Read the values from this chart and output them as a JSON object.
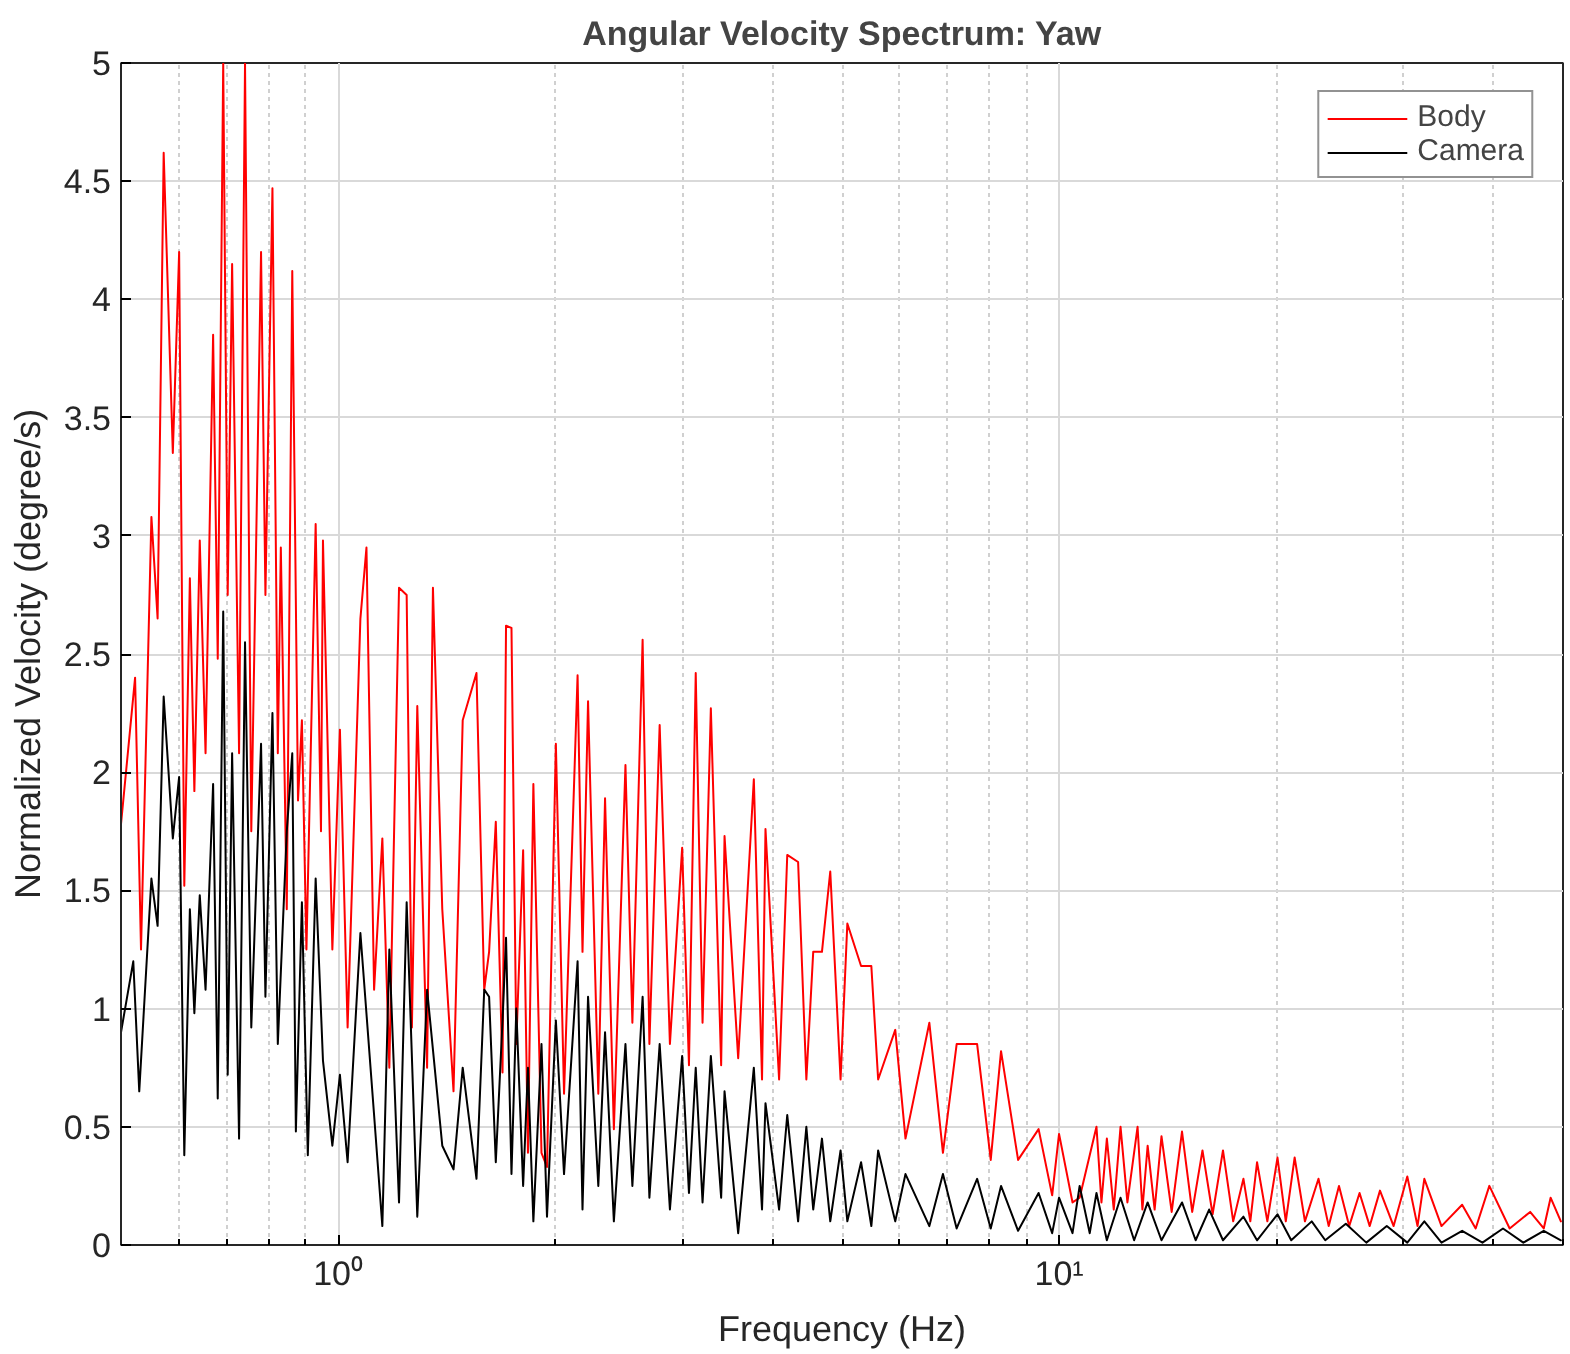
{
  "chart_data": {
    "type": "line",
    "title": "Angular Velocity Spectrum: Yaw",
    "xlabel": "Frequency (Hz)",
    "ylabel": "Normalized Velocity (degree/s)",
    "log": "x",
    "grid": true,
    "legend": "top right",
    "line_style": "solid",
    "marker": "none",
    "xlim": [
      0.5,
      50
    ],
    "ylim": [
      0,
      5
    ],
    "xticks": [
      {
        "value": 0.5,
        "label": null
      },
      {
        "value": 0.6,
        "label": null
      },
      {
        "value": 0.7,
        "label": null
      },
      {
        "value": 0.8,
        "label": null
      },
      {
        "value": 0.9,
        "label": null
      },
      {
        "value": 1,
        "label": "10⁰"
      },
      {
        "value": 2,
        "label": null
      },
      {
        "value": 3,
        "label": null
      },
      {
        "value": 4,
        "label": null
      },
      {
        "value": 5,
        "label": null
      },
      {
        "value": 6,
        "label": null
      },
      {
        "value": 7,
        "label": null
      },
      {
        "value": 8,
        "label": null
      },
      {
        "value": 9,
        "label": null
      },
      {
        "value": 10,
        "label": "10¹"
      },
      {
        "value": 20,
        "label": null
      },
      {
        "value": 30,
        "label": null
      },
      {
        "value": 40,
        "label": null
      },
      {
        "value": 50,
        "label": null
      }
    ],
    "yticks": [
      0,
      0.5,
      1,
      1.5,
      2,
      2.5,
      3,
      3.5,
      4,
      4.5,
      5
    ],
    "series": [
      {
        "name": "Body",
        "color": "#ff0000",
        "x": [
          0.5,
          0.523,
          0.533,
          0.551,
          0.562,
          0.573,
          0.59,
          0.602,
          0.612,
          0.623,
          0.632,
          0.643,
          0.655,
          0.671,
          0.681,
          0.693,
          0.703,
          0.713,
          0.729,
          0.743,
          0.758,
          0.782,
          0.793,
          0.811,
          0.825,
          0.833,
          0.849,
          0.864,
          0.88,
          0.891,
          0.904,
          0.931,
          0.947,
          0.953,
          0.982,
          1.006,
          1.031,
          1.074,
          1.095,
          1.122,
          1.152,
          1.178,
          1.215,
          1.245,
          1.266,
          1.288,
          1.329,
          1.354,
          1.395,
          1.446,
          1.489,
          1.556,
          1.595,
          1.62,
          1.655,
          1.691,
          1.71,
          1.74,
          1.767,
          1.806,
          1.834,
          1.866,
          1.915,
          1.949,
          2.005,
          2.058,
          2.149,
          2.183,
          2.222,
          2.296,
          2.346,
          2.413,
          2.504,
          2.56,
          2.645,
          2.703,
          2.793,
          2.886,
          3.001,
          3.067,
          3.134,
          3.203,
          3.289,
          3.399,
          3.436,
          3.589,
          3.773,
          3.873,
          3.916,
          4.09,
          4.198,
          4.346,
          4.462,
          4.561,
          4.69,
          4.816,
          4.977,
          5.086,
          5.314,
          5.491,
          5.612,
          5.927,
          6.124,
          6.609,
          6.902,
          7.211,
          7.698,
          8.04,
          8.309,
          8.774,
          9.368,
          9.783,
          10.0,
          10.44,
          10.68,
          11.27,
          11.45,
          11.65,
          11.91,
          12.17,
          12.44,
          12.85,
          13.05,
          13.27,
          13.57,
          13.87,
          14.33,
          14.81,
          15.3,
          15.81,
          16.33,
          16.88,
          17.44,
          18.02,
          18.42,
          18.82,
          19.45,
          20.09,
          20.63,
          21.22,
          21.93,
          22.9,
          23.66,
          24.45,
          25.26,
          26.11,
          26.97,
          27.87,
          29.11,
          30.41,
          31.42,
          32.11,
          33.92,
          36.23,
          37.83,
          39.52,
          42.17,
          45.02,
          47.02,
          48.06,
          49.66
        ],
        "values": [
          1.78,
          2.4,
          1.25,
          3.08,
          2.65,
          4.62,
          3.35,
          4.2,
          1.52,
          2.82,
          1.92,
          2.98,
          2.08,
          3.85,
          2.48,
          5.0,
          2.75,
          4.15,
          2.08,
          5.0,
          1.75,
          4.2,
          2.75,
          4.47,
          2.08,
          2.95,
          1.42,
          4.12,
          1.88,
          2.22,
          1.25,
          3.05,
          1.75,
          2.98,
          1.25,
          2.18,
          0.92,
          2.65,
          2.95,
          1.08,
          1.72,
          0.75,
          2.78,
          2.75,
          0.92,
          2.28,
          0.75,
          2.78,
          1.42,
          0.65,
          2.22,
          2.42,
          1.08,
          1.24,
          1.79,
          0.73,
          2.62,
          2.61,
          0.85,
          1.67,
          0.39,
          1.95,
          0.39,
          0.33,
          2.12,
          0.64,
          2.41,
          1.24,
          2.3,
          0.64,
          1.89,
          0.49,
          2.03,
          0.94,
          2.56,
          0.85,
          2.2,
          0.85,
          1.68,
          0.76,
          2.42,
          0.94,
          2.27,
          0.76,
          1.73,
          0.79,
          1.97,
          0.7,
          1.76,
          0.7,
          1.65,
          1.62,
          0.7,
          1.24,
          1.24,
          1.58,
          0.7,
          1.36,
          1.18,
          1.18,
          0.7,
          0.91,
          0.45,
          0.94,
          0.39,
          0.85,
          0.85,
          0.36,
          0.82,
          0.36,
          0.49,
          0.21,
          0.47,
          0.18,
          0.2,
          0.5,
          0.18,
          0.45,
          0.15,
          0.5,
          0.18,
          0.5,
          0.15,
          0.42,
          0.15,
          0.46,
          0.14,
          0.48,
          0.14,
          0.4,
          0.13,
          0.4,
          0.1,
          0.28,
          0.1,
          0.35,
          0.1,
          0.37,
          0.1,
          0.37,
          0.1,
          0.28,
          0.08,
          0.25,
          0.08,
          0.22,
          0.08,
          0.23,
          0.08,
          0.29,
          0.08,
          0.28,
          0.08,
          0.17,
          0.07,
          0.25,
          0.07,
          0.14,
          0.07,
          0.2,
          0.1
        ]
      },
      {
        "name": "Camera",
        "color": "#000000",
        "x": [
          0.5,
          0.52,
          0.53,
          0.551,
          0.562,
          0.573,
          0.59,
          0.602,
          0.612,
          0.623,
          0.632,
          0.643,
          0.655,
          0.671,
          0.681,
          0.693,
          0.703,
          0.713,
          0.729,
          0.743,
          0.758,
          0.782,
          0.793,
          0.811,
          0.825,
          0.849,
          0.864,
          0.874,
          0.891,
          0.908,
          0.931,
          0.953,
          0.982,
          1.006,
          1.031,
          1.074,
          1.122,
          1.152,
          1.178,
          1.215,
          1.245,
          1.288,
          1.329,
          1.395,
          1.446,
          1.489,
          1.556,
          1.595,
          1.62,
          1.655,
          1.691,
          1.71,
          1.74,
          1.767,
          1.806,
          1.834,
          1.866,
          1.915,
          1.949,
          2.005,
          2.058,
          2.149,
          2.183,
          2.222,
          2.296,
          2.346,
          2.413,
          2.504,
          2.56,
          2.645,
          2.703,
          2.793,
          2.886,
          3.001,
          3.067,
          3.134,
          3.203,
          3.289,
          3.399,
          3.436,
          3.589,
          3.773,
          3.873,
          3.916,
          4.09,
          4.198,
          4.346,
          4.462,
          4.561,
          4.69,
          4.816,
          4.977,
          5.086,
          5.314,
          5.491,
          5.612,
          5.927,
          6.124,
          6.609,
          6.902,
          7.211,
          7.698,
          8.04,
          8.309,
          8.774,
          9.368,
          9.783,
          10.0,
          10.44,
          10.68,
          11.03,
          11.27,
          11.65,
          12.17,
          12.71,
          13.27,
          13.87,
          14.81,
          15.47,
          16.15,
          16.88,
          18.02,
          18.82,
          20.09,
          20.99,
          22.41,
          23.4,
          24.99,
          26.68,
          28.48,
          30.41,
          32.11,
          33.92,
          36.23,
          38.66,
          41.28,
          44.05,
          47.02,
          49.66
        ],
        "values": [
          0.9,
          1.2,
          0.65,
          1.55,
          1.35,
          2.32,
          1.72,
          1.98,
          0.38,
          1.42,
          0.98,
          1.48,
          1.08,
          1.95,
          0.62,
          2.68,
          0.72,
          2.08,
          0.45,
          2.55,
          0.92,
          2.12,
          1.05,
          2.25,
          0.85,
          1.75,
          2.08,
          0.48,
          1.45,
          0.38,
          1.55,
          0.78,
          0.42,
          0.72,
          0.35,
          1.32,
          0.55,
          0.08,
          1.25,
          0.18,
          1.45,
          0.12,
          1.08,
          0.42,
          0.32,
          0.75,
          0.28,
          1.08,
          1.05,
          0.35,
          0.95,
          1.3,
          0.3,
          1.0,
          0.25,
          0.75,
          0.1,
          0.85,
          0.12,
          0.95,
          0.3,
          1.2,
          0.15,
          1.05,
          0.25,
          0.9,
          0.1,
          0.85,
          0.25,
          1.05,
          0.2,
          0.85,
          0.15,
          0.8,
          0.22,
          0.75,
          0.18,
          0.8,
          0.2,
          0.65,
          0.05,
          0.75,
          0.15,
          0.6,
          0.15,
          0.55,
          0.1,
          0.5,
          0.15,
          0.45,
          0.1,
          0.4,
          0.1,
          0.35,
          0.08,
          0.4,
          0.1,
          0.3,
          0.08,
          0.3,
          0.07,
          0.28,
          0.07,
          0.25,
          0.06,
          0.22,
          0.05,
          0.2,
          0.05,
          0.25,
          0.05,
          0.22,
          0.02,
          0.2,
          0.02,
          0.18,
          0.02,
          0.18,
          0.02,
          0.15,
          0.02,
          0.12,
          0.02,
          0.13,
          0.02,
          0.1,
          0.02,
          0.09,
          0.01,
          0.08,
          0.01,
          0.1,
          0.01,
          0.06,
          0.01,
          0.07,
          0.01,
          0.06,
          0.02
        ]
      }
    ]
  }
}
